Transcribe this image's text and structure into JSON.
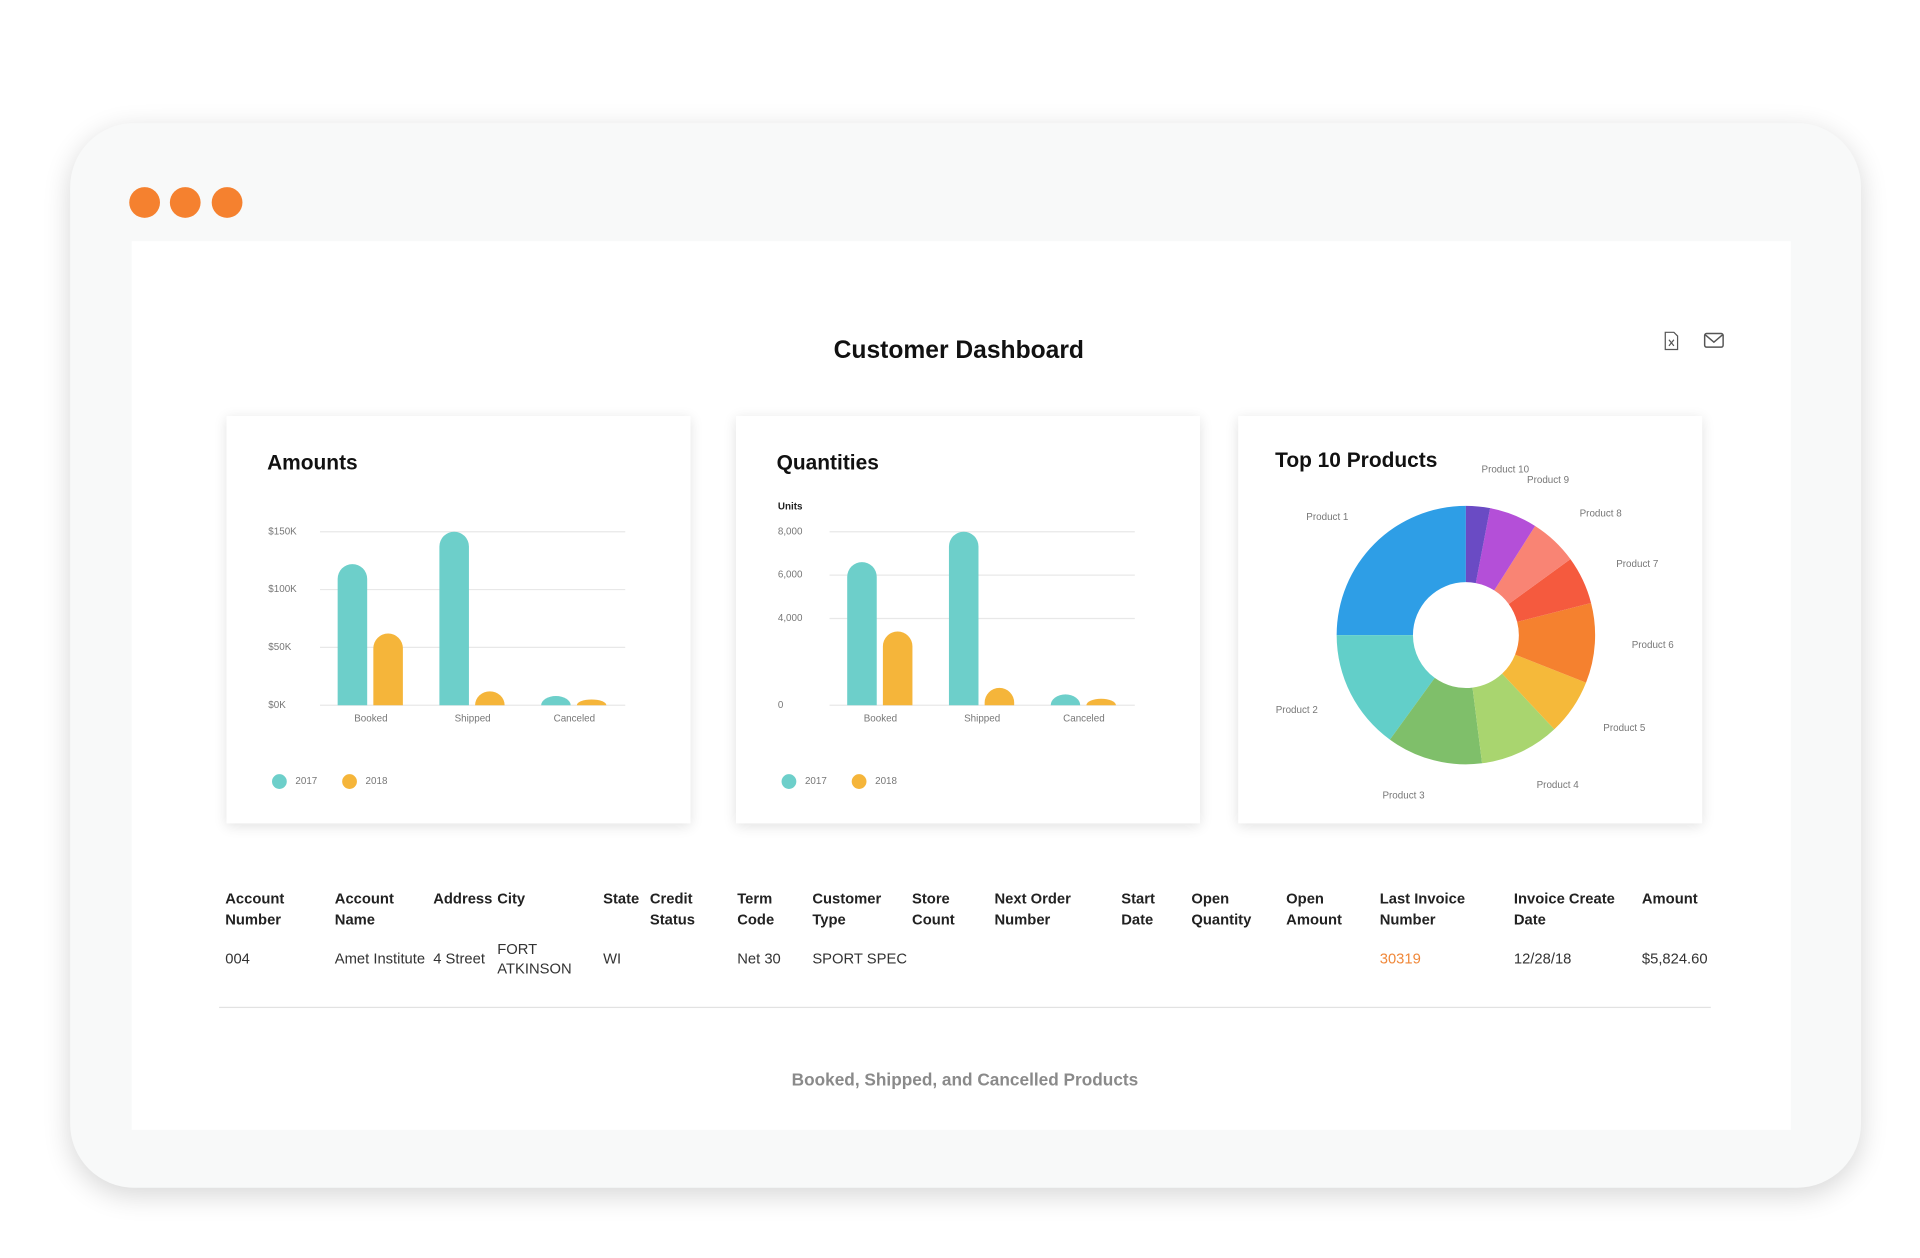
{
  "header": {
    "title": "Customer Dashboard"
  },
  "chart_data": [
    {
      "type": "bar",
      "title": "Amounts",
      "categories": [
        "Booked",
        "Shipped",
        "Canceled"
      ],
      "series": [
        {
          "name": "2017",
          "color": "#6dcfca",
          "values": [
            122000,
            150000,
            8000
          ]
        },
        {
          "name": "2018",
          "color": "#f5b53a",
          "values": [
            62000,
            12000,
            5000
          ]
        }
      ],
      "ylim": [
        0,
        150000
      ],
      "yticks": [
        {
          "value": 0,
          "label": "$0K"
        },
        {
          "value": 50000,
          "label": "$50K"
        },
        {
          "value": 100000,
          "label": "$100K"
        },
        {
          "value": 150000,
          "label": "$150K"
        }
      ],
      "grid": true
    },
    {
      "type": "bar",
      "title": "Quantities",
      "y_label": "Units",
      "categories": [
        "Booked",
        "Shipped",
        "Canceled"
      ],
      "series": [
        {
          "name": "2017",
          "color": "#6dcfca",
          "values": [
            6600,
            8000,
            500
          ]
        },
        {
          "name": "2018",
          "color": "#f5b53a",
          "values": [
            3400,
            800,
            300
          ]
        }
      ],
      "ylim": [
        0,
        8000
      ],
      "yticks": [
        0,
        {
          "value": 4000,
          "label": "4,000"
        },
        {
          "value": 6000,
          "label": "6,000"
        },
        {
          "value": 8000,
          "label": "8,000"
        }
      ],
      "grid": true
    },
    {
      "type": "pie",
      "title": "Top 10 Products",
      "donut": true,
      "categories": [
        "Product 1",
        "Product 2",
        "Product 3",
        "Product 4",
        "Product 5",
        "Product 6",
        "Product 7",
        "Product 8",
        "Product 9",
        "Product 10"
      ],
      "values": [
        25,
        15,
        12,
        10,
        7,
        10,
        6,
        6,
        6,
        3
      ],
      "colors": [
        "#2e9ee6",
        "#62cfc9",
        "#7fbf6a",
        "#a9d56f",
        "#f5b93a",
        "#f5812f",
        "#f55a3e",
        "#f98474",
        "#b44fd8",
        "#6a4bc4"
      ]
    }
  ],
  "table": {
    "headers": [
      "Account Number",
      "Account Name",
      "Address",
      "City",
      "State",
      "Credit Status",
      "Term Code",
      "Customer Type",
      "Store Count",
      "Next Order Number",
      "Start Date",
      "Open Quantity",
      "Open Amount",
      "Last Invoice Number",
      "Invoice Create Date",
      "Amount"
    ],
    "rows": [
      [
        "004",
        "Amet Institute",
        "4 Street",
        "FORT ATKINSON",
        "WI",
        null,
        "Net 30",
        "SPORT SPEC",
        null,
        null,
        null,
        null,
        null,
        "30319",
        "12/28/18",
        "$5,824.60"
      ]
    ]
  },
  "footer": {
    "caption": "Booked, Shipped, and Cancelled Products"
  }
}
